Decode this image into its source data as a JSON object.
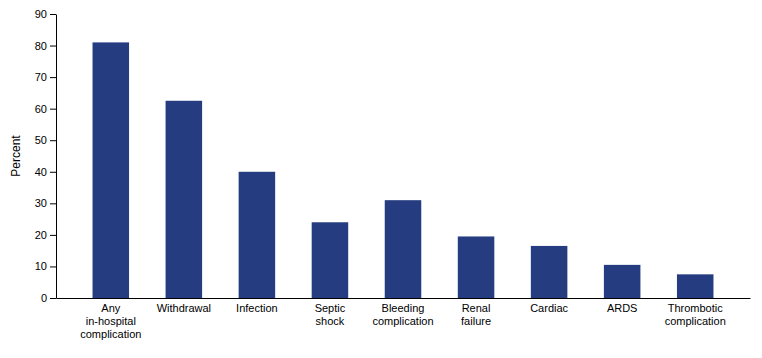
{
  "chart_data": {
    "type": "bar",
    "categories": [
      "Any\nin-hospital\ncomplication",
      "Withdrawal",
      "Infection",
      "Septic\nshock",
      "Bleeding\ncomplication",
      "Renal\nfailure",
      "Cardiac",
      "ARDS",
      "Thrombotic\ncomplication"
    ],
    "values": [
      81,
      62.5,
      40,
      24,
      31,
      19.5,
      16.5,
      10.5,
      7.5
    ],
    "color": "#253d80",
    "ylabel": "Percent",
    "ylim": [
      0,
      90
    ],
    "yticks": [
      0,
      10,
      20,
      30,
      40,
      50,
      60,
      70,
      80,
      90
    ],
    "grid": false
  }
}
